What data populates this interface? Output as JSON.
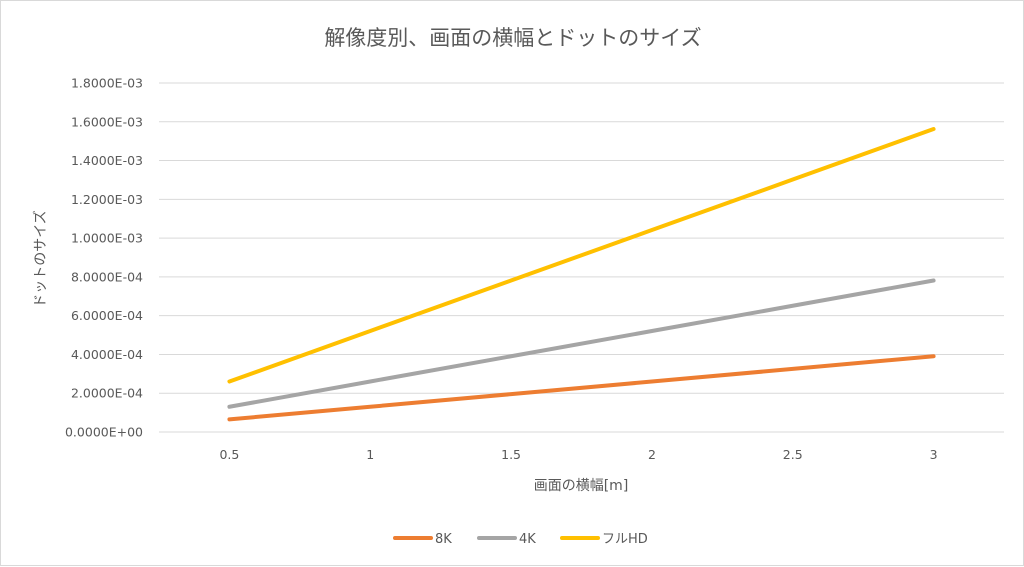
{
  "chart_data": {
    "type": "line",
    "title": "解像度別、画面の横幅とドットのサイズ",
    "xlabel": "画面の横幅[m]",
    "ylabel": "ドットのサイズ",
    "categories": [
      "0.5",
      "1",
      "1.5",
      "2",
      "2.5",
      "3"
    ],
    "x": [
      0.5,
      1,
      1.5,
      2,
      2.5,
      3
    ],
    "ylim": [
      0,
      0.0018
    ],
    "ytick_values": [
      0,
      0.0002,
      0.0004,
      0.0006,
      0.0008,
      0.001,
      0.0012,
      0.0014,
      0.0016,
      0.0018
    ],
    "ytick_labels": [
      "0.0000E+00",
      "2.0000E-04",
      "4.0000E-04",
      "6.0000E-04",
      "8.0000E-04",
      "1.0000E-03",
      "1.2000E-03",
      "1.4000E-03",
      "1.6000E-03",
      "1.8000E-03"
    ],
    "grid": true,
    "legend_position": "bottom",
    "series": [
      {
        "name": "8K",
        "color": "#ed7d31",
        "values": [
          6.51e-05,
          0.00013021,
          0.00019531,
          0.00026042,
          0.00032552,
          0.00039063
        ]
      },
      {
        "name": "4K",
        "color": "#a5a5a5",
        "values": [
          0.00013021,
          0.00026042,
          0.00039063,
          0.00052083,
          0.00065104,
          0.00078125
        ]
      },
      {
        "name": "フルHD",
        "color": "#ffc000",
        "values": [
          0.00026042,
          0.00052083,
          0.00078125,
          0.00104167,
          0.00130208,
          0.0015625
        ]
      }
    ]
  }
}
